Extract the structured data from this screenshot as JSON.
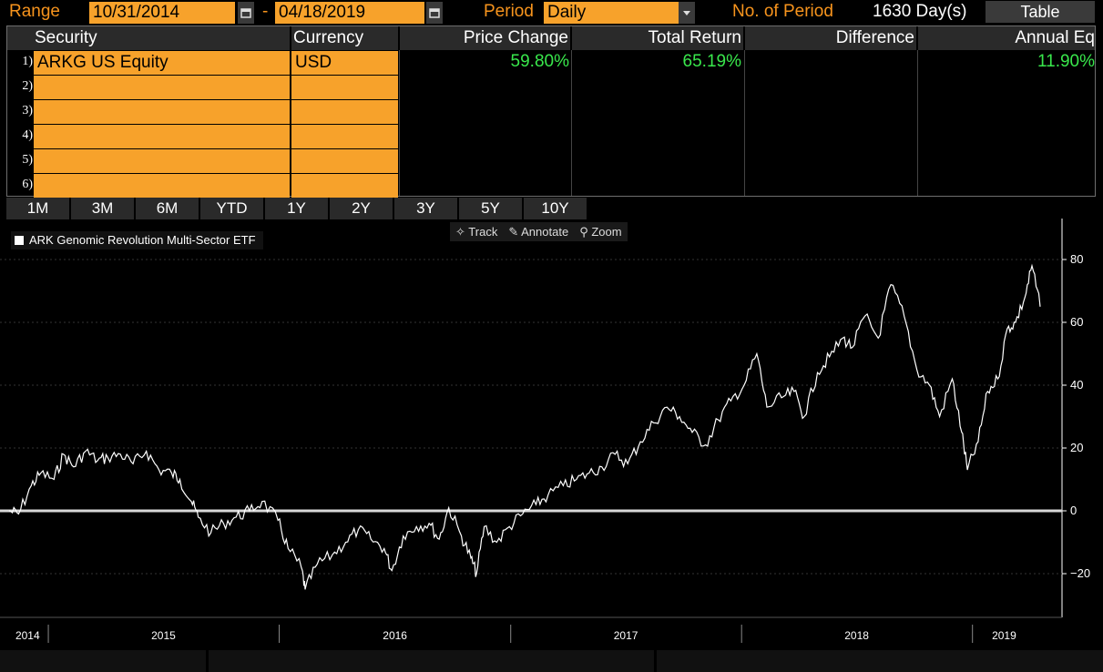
{
  "toolbar": {
    "range_label": "Range",
    "start_date": "10/31/2014",
    "dash": "-",
    "end_date": "04/18/2019",
    "period_label": "Period",
    "period_value": "Daily",
    "no_of_period_label": "No. of Period",
    "no_of_period_value": "1630 Day(s)",
    "table_button": "Table"
  },
  "table": {
    "headers": [
      "Security",
      "Currency",
      "Price Change",
      "Total Return",
      "Difference",
      "Annual Eq"
    ],
    "rows": [
      {
        "num": "1)",
        "security": "ARKG US Equity",
        "currency": "USD",
        "price_change": "59.80%",
        "total_return": "65.19%",
        "difference": "",
        "annual_eq": "11.90%"
      },
      {
        "num": "2)",
        "security": "",
        "currency": "",
        "price_change": "",
        "total_return": "",
        "difference": "",
        "annual_eq": ""
      },
      {
        "num": "3)",
        "security": "",
        "currency": "",
        "price_change": "",
        "total_return": "",
        "difference": "",
        "annual_eq": ""
      },
      {
        "num": "4)",
        "security": "",
        "currency": "",
        "price_change": "",
        "total_return": "",
        "difference": "",
        "annual_eq": ""
      },
      {
        "num": "5)",
        "security": "",
        "currency": "",
        "price_change": "",
        "total_return": "",
        "difference": "",
        "annual_eq": ""
      },
      {
        "num": "6)",
        "security": "",
        "currency": "",
        "price_change": "",
        "total_return": "",
        "difference": "",
        "annual_eq": ""
      }
    ]
  },
  "period_buttons": [
    "1M",
    "3M",
    "6M",
    "YTD",
    "1Y",
    "2Y",
    "3Y",
    "5Y",
    "10Y"
  ],
  "chart_tools": [
    "Track",
    "Annotate",
    "Zoom"
  ],
  "chart_tool_icons": [
    "crosshair-icon",
    "pencil-icon",
    "magnifier-icon"
  ],
  "colors": {
    "accent_orange": "#f7a22b",
    "positive_green": "#39e84c",
    "line": "#ffffff"
  },
  "chart_data": {
    "type": "line",
    "legend": "ARK Genomic Revolution Multi-Sector ETF",
    "legend_position": "top-left",
    "ylim": [
      -32,
      88
    ],
    "yticks": [
      -20,
      0,
      20,
      40,
      60,
      80
    ],
    "reference_line": 0,
    "x_labels": [
      "2014",
      "2015",
      "2016",
      "2017",
      "2018",
      "2019"
    ],
    "x_range": [
      "2014-10-31",
      "2019-04-18"
    ],
    "series": [
      {
        "name": "ARK Genomic Revolution Multi-Sector ETF",
        "x": [
          "2014-10-31",
          "2014-11-15",
          "2014-12-05",
          "2014-12-20",
          "2015-01-10",
          "2015-01-25",
          "2015-02-10",
          "2015-03-01",
          "2015-03-20",
          "2015-04-05",
          "2015-04-25",
          "2015-05-15",
          "2015-06-05",
          "2015-06-25",
          "2015-07-15",
          "2015-07-28",
          "2015-08-15",
          "2015-08-26",
          "2015-09-15",
          "2015-10-05",
          "2015-10-25",
          "2015-11-15",
          "2015-12-05",
          "2015-12-30",
          "2016-01-15",
          "2016-02-05",
          "2016-02-11",
          "2016-03-01",
          "2016-03-25",
          "2016-04-15",
          "2016-05-05",
          "2016-05-25",
          "2016-06-15",
          "2016-06-27",
          "2016-07-15",
          "2016-08-05",
          "2016-08-25",
          "2016-09-10",
          "2016-09-25",
          "2016-10-15",
          "2016-10-30",
          "2016-11-08",
          "2016-11-20",
          "2016-12-10",
          "2016-12-30",
          "2017-01-20",
          "2017-02-10",
          "2017-03-01",
          "2017-03-25",
          "2017-04-15",
          "2017-05-05",
          "2017-05-25",
          "2017-06-15",
          "2017-07-05",
          "2017-07-25",
          "2017-08-15",
          "2017-09-05",
          "2017-09-25",
          "2017-10-15",
          "2017-11-05",
          "2017-11-25",
          "2017-12-15",
          "2018-01-05",
          "2018-01-25",
          "2018-02-10",
          "2018-03-05",
          "2018-03-25",
          "2018-04-10",
          "2018-05-01",
          "2018-05-20",
          "2018-06-10",
          "2018-06-25",
          "2018-07-15",
          "2018-08-05",
          "2018-08-25",
          "2018-09-15",
          "2018-10-05",
          "2018-10-25",
          "2018-11-10",
          "2018-11-30",
          "2018-12-15",
          "2018-12-24",
          "2019-01-10",
          "2019-01-25",
          "2019-02-10",
          "2019-02-25",
          "2019-03-10",
          "2019-03-25",
          "2019-04-05",
          "2019-04-18"
        ],
        "y": [
          0,
          -1,
          8,
          12,
          10,
          18,
          14,
          19,
          16,
          17,
          18,
          15,
          19,
          13,
          12,
          10,
          3,
          -2,
          -7,
          -4,
          -2,
          0,
          3,
          -3,
          -12,
          -18,
          -25,
          -17,
          -14,
          -10,
          -6,
          -9,
          -12,
          -19,
          -8,
          -5,
          -4,
          -9,
          1,
          -8,
          -15,
          -20,
          -5,
          -10,
          -5,
          -1,
          2,
          5,
          8,
          10,
          12,
          14,
          18,
          15,
          22,
          28,
          33,
          30,
          25,
          21,
          29,
          35,
          40,
          50,
          33,
          36,
          38,
          30,
          44,
          49,
          55,
          52,
          62,
          55,
          72,
          62,
          45,
          40,
          30,
          42,
          25,
          13,
          22,
          38,
          42,
          58,
          60,
          68,
          78,
          65
        ]
      }
    ]
  }
}
